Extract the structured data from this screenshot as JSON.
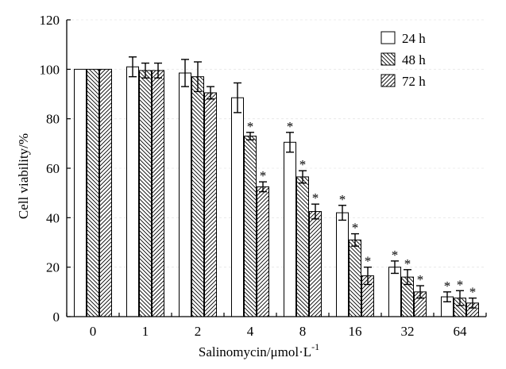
{
  "chart_data": {
    "type": "bar",
    "title": "",
    "xlabel": "Salinomycin/μmol·L",
    "xlabel_superscript": "-1",
    "ylabel": "Cell viability/%",
    "ylim": [
      0,
      120
    ],
    "yticks": [
      "0",
      "20",
      "40",
      "60",
      "80",
      "100",
      "120"
    ],
    "yticks_values": [
      0,
      20,
      40,
      60,
      80,
      100,
      120
    ],
    "categories": [
      "0",
      "1",
      "2",
      "4",
      "8",
      "16",
      "32",
      "64"
    ],
    "series": [
      {
        "name": "24 h",
        "pattern": "none",
        "values": [
          100,
          101,
          98.5,
          88.5,
          70.5,
          42,
          20,
          8
        ],
        "errors": [
          0,
          4,
          5.5,
          6,
          4,
          3,
          2.5,
          2
        ],
        "significant": [
          false,
          false,
          false,
          false,
          true,
          true,
          true,
          true
        ]
      },
      {
        "name": "48 h",
        "pattern": "back-diagonal",
        "values": [
          100,
          99.5,
          97,
          73,
          56.5,
          31,
          16,
          7.5
        ],
        "errors": [
          0,
          3,
          6,
          1.5,
          2.5,
          2.5,
          3,
          3
        ],
        "significant": [
          false,
          false,
          false,
          true,
          true,
          true,
          true,
          true
        ]
      },
      {
        "name": "72 h",
        "pattern": "forward-diagonal",
        "values": [
          100,
          99.5,
          90.5,
          52.5,
          42.5,
          16.5,
          10,
          5.5
        ],
        "errors": [
          0,
          3,
          2.5,
          2,
          3,
          3.5,
          2.5,
          2
        ],
        "significant": [
          false,
          false,
          false,
          true,
          true,
          true,
          true,
          true
        ]
      }
    ],
    "significance_marker": "*",
    "legend_position": "top-right"
  }
}
